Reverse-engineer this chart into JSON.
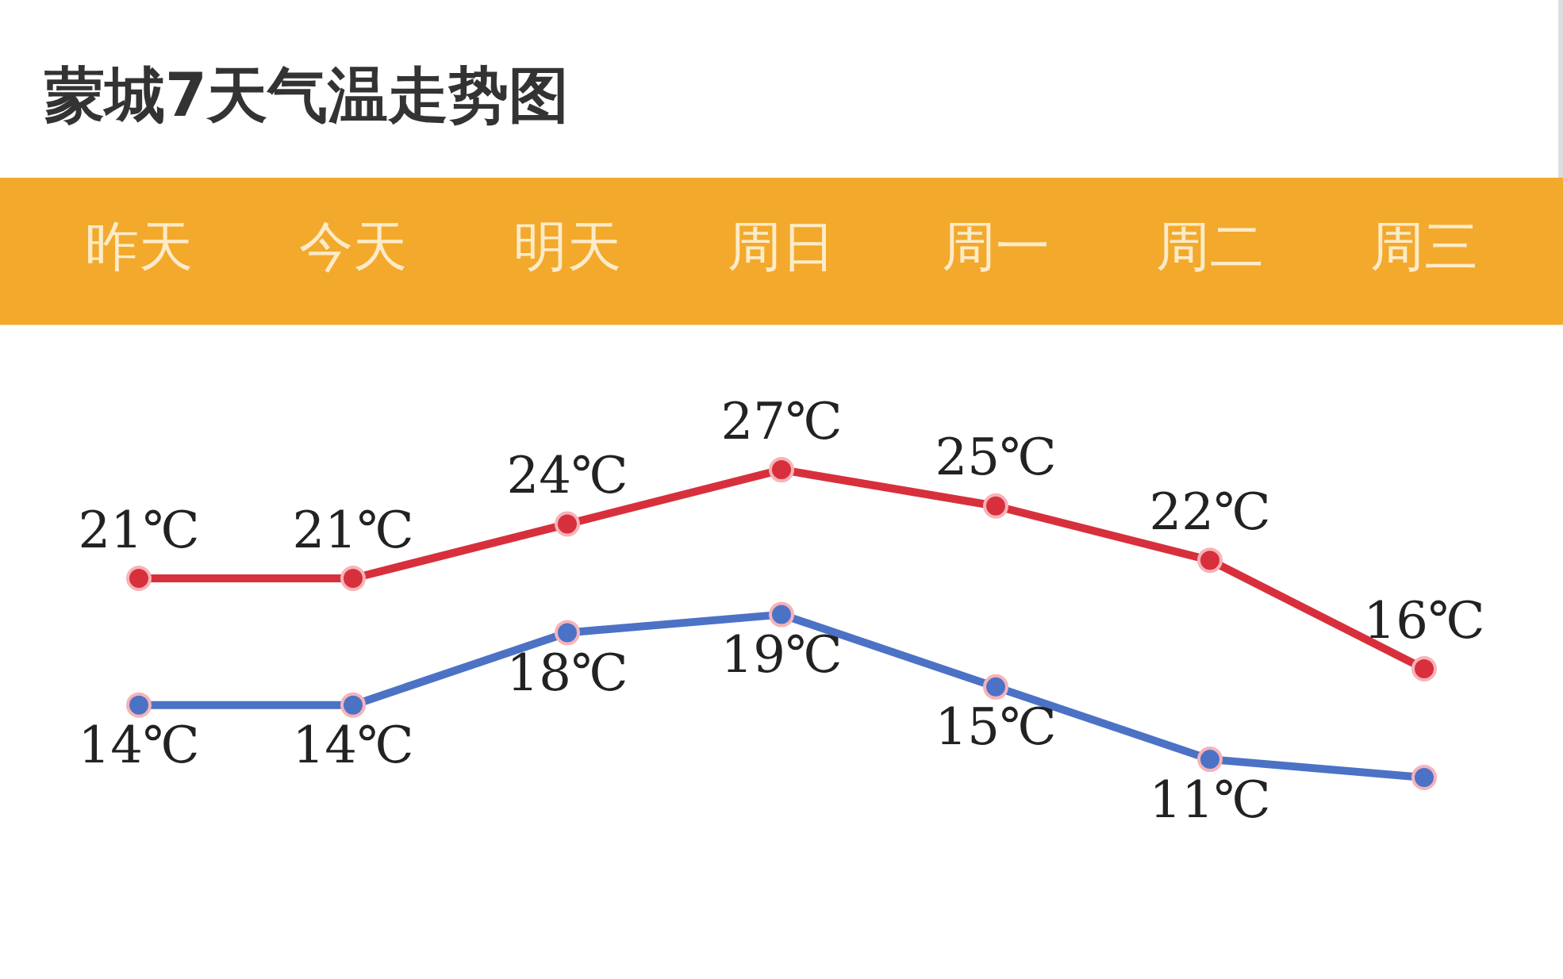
{
  "chart_data": {
    "type": "line",
    "title": "蒙城7天气温走势图",
    "categories": [
      "昨天",
      "今天",
      "明天",
      "周日",
      "周一",
      "周二",
      "周三"
    ],
    "series": [
      {
        "color": "#d7303c",
        "values": [
          21,
          21,
          24,
          27,
          25,
          22,
          16
        ],
        "value_labels": [
          "21℃",
          "21℃",
          "24℃",
          "27℃",
          "25℃",
          "22℃",
          "16℃"
        ]
      },
      {
        "color": "#4c72c6",
        "values": [
          14,
          14,
          18,
          19,
          15,
          11,
          10
        ],
        "value_labels": [
          "14℃",
          "14℃",
          "18℃",
          "19℃",
          "15℃",
          "11℃",
          null
        ]
      }
    ],
    "legend": false,
    "grid": false,
    "marker": "circle",
    "line_style": "solid",
    "tick_labels": "x"
  }
}
